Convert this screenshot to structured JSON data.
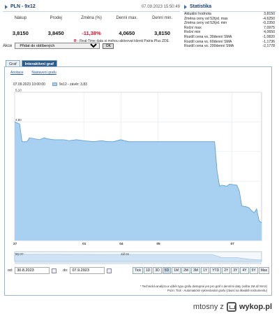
{
  "quote": {
    "symbol": "PLN - 9x12",
    "timestamp": "07.09.2023 15:50:49",
    "headers": [
      "Nákup",
      "Prodej",
      "Změna (%)",
      "Denní max.",
      "Denní min."
    ],
    "values": [
      "3,8150",
      "3,8450",
      "-11,38%",
      "4,0650",
      "3,8150"
    ],
    "realtime_marker": "R",
    "realtime_note": " - Real-Time data si mohou aktivovat klienti Patria Plus ZDE.",
    "alerts_label": "Akce",
    "alerts_select": "Přidat do oblíbených",
    "go_label": "OK"
  },
  "statistics": {
    "title": "Statistika",
    "rows": [
      {
        "label": "Aktuální hodnota",
        "value": "3,8150"
      },
      {
        "label": "Změna ceny od 52týd. max",
        "value": "-4,6250"
      },
      {
        "label": "Změna ceny od 52týd. min",
        "value": "-0,2350"
      },
      {
        "label": "Roční max",
        "value": "7,0975"
      },
      {
        "label": "Roční min",
        "value": "4,0650"
      },
      {
        "label": "Rozdíl cena vs. 30denní SMA",
        "value": "-1,0820"
      },
      {
        "label": "Rozdíl cena vs. 60denní SMA",
        "value": "-1,1736"
      },
      {
        "label": "Rozdíl cena vs. 200denní SMA",
        "value": "-2,1778"
      }
    ]
  },
  "tabs": [
    "Graf",
    "Interaktivní graf"
  ],
  "chart_panel": {
    "links": [
      "Anotace",
      "Nastavení grafu"
    ],
    "legend_date": "07.09.2023 10:00:00",
    "legend_series": "9x12 - závěr: 3,83",
    "from_label": "od:",
    "from_value": "30.8.2023",
    "to_label": "do:",
    "to_value": "07.9.2023",
    "periods": [
      "Tick",
      "1D",
      "3D",
      "5D",
      "1M",
      "2M",
      "3M",
      "1Y",
      "YTD",
      "2Y",
      "3Y",
      "4Y",
      "5Y",
      "Max"
    ],
    "selected_period": "5D",
    "nav_labels": [
      "srp 27",
      "zář 04"
    ],
    "note1_marker": "*",
    "note1": " Technická analýza a výběr typu grafu dostupné jen pro graf s denními daty (volba 1M až MAX)",
    "note2": "Pozn: Tick - Automatické vykreslování grafu (závisí na likviditě instrumentu)"
  },
  "colors": {
    "fill": "#a8d0f0",
    "line": "#5b9bd5",
    "accent": "#c0162f",
    "header": "#1c3f6b"
  },
  "chart_data": {
    "type": "area",
    "title": "",
    "xlabel": "",
    "ylabel": "",
    "ylim": [
      3.6,
      5.1
    ],
    "yticks": [
      5.1,
      4.8,
      4.5,
      4.2,
      3.9,
      3.6
    ],
    "ytick_labels": [
      "5,10",
      "4,80",
      "4,50",
      "4,20",
      "3,90",
      "3,60"
    ],
    "xtick_labels": [
      "27",
      "01",
      "04",
      "05",
      "07"
    ],
    "xtick_positions": [
      0,
      0.28,
      0.43,
      0.58,
      0.88
    ],
    "series": [
      {
        "name": "9x12",
        "x": [
          0,
          0.02,
          0.03,
          0.05,
          0.06,
          0.1,
          0.12,
          0.13,
          0.16,
          0.2,
          0.22,
          0.25,
          0.28,
          0.32,
          0.35,
          0.38,
          0.4,
          0.43,
          0.46,
          0.5,
          0.55,
          0.58,
          0.62,
          0.66,
          0.7,
          0.74,
          0.78,
          0.81,
          0.82,
          0.83,
          0.84,
          0.86,
          0.87,
          0.9,
          0.91,
          0.92,
          0.94,
          0.95,
          0.96,
          0.97,
          0.98,
          0.99,
          1.0
        ],
        "y": [
          4.8,
          4.78,
          4.6,
          4.6,
          4.64,
          4.62,
          4.64,
          4.63,
          4.62,
          4.62,
          4.61,
          4.62,
          4.61,
          4.6,
          4.61,
          4.6,
          4.6,
          4.62,
          4.6,
          4.6,
          4.6,
          4.6,
          4.6,
          4.6,
          4.6,
          4.6,
          4.6,
          4.6,
          4.3,
          4.15,
          4.16,
          4.15,
          4.17,
          4.16,
          4.1,
          3.95,
          3.94,
          3.93,
          3.9,
          3.88,
          3.92,
          3.8,
          3.78
        ]
      }
    ]
  },
  "navigator_data": {
    "x": [
      0,
      0.05,
      0.1,
      0.2,
      0.4,
      0.6,
      0.8,
      0.84,
      0.9,
      0.95,
      1.0
    ],
    "y": [
      4.8,
      4.6,
      4.62,
      4.61,
      4.6,
      4.6,
      4.6,
      4.15,
      4.16,
      3.92,
      3.8
    ]
  },
  "footer": {
    "text": "mtosny z",
    "brand": "wykop.pl"
  }
}
